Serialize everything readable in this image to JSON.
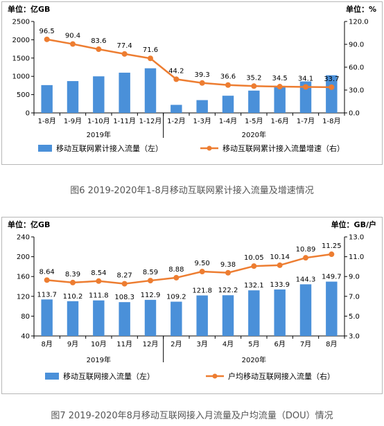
{
  "charts": [
    {
      "unit_left": "单位：亿GB",
      "unit_right": "单位：%",
      "caption": "图6 2019-2020年1-8月移动互联网累计接入流量及增速情况",
      "year_labels": [
        "2019年",
        "2020年"
      ]
    },
    {
      "unit_left": "单位：亿GB",
      "unit_right": "单位：GB/户",
      "caption": "图7 2019-2020年8月移动互联网接入月流量及户均流量（DOU）情况",
      "year_labels": [
        "2019年",
        "2020年"
      ]
    }
  ],
  "chart_data": [
    {
      "type": "bar+line",
      "categories": [
        "1-8月",
        "1-9月",
        "1-10月",
        "1-11月",
        "1-12月",
        "1-2月",
        "1-3月",
        "1-4月",
        "1-5月",
        "1-6月",
        "1-7月",
        "1-8月"
      ],
      "series": [
        {
          "name": "移动互联网累计接入流量（左）",
          "kind": "bar",
          "axis": "left",
          "values": [
            760,
            870,
            1000,
            1100,
            1220,
            220,
            350,
            470,
            610,
            740,
            860,
            1030
          ]
        },
        {
          "name": "移动互联网累计接入流量增速（右）",
          "kind": "line",
          "axis": "right",
          "values": [
            96.5,
            90.4,
            83.6,
            77.4,
            71.6,
            44.2,
            39.3,
            36.6,
            35.2,
            34.5,
            34.1,
            33.7
          ]
        }
      ],
      "y_left": {
        "min": 0,
        "max": 2500,
        "ticks": [
          "0",
          "500",
          "1000",
          "1500",
          "2000",
          "2500"
        ]
      },
      "y_right": {
        "min": 0,
        "max": 120,
        "ticks": [
          "0.0",
          "30.0",
          "60.0",
          "90.0",
          "120.0"
        ]
      },
      "line_labels": [
        "96.5",
        "90.4",
        "83.6",
        "77.4",
        "71.6",
        "44.2",
        "39.3",
        "36.6",
        "35.2",
        "34.5",
        "34.1",
        "33.7"
      ],
      "legend_placement": "bottom",
      "colors": {
        "bar": "#4a90d9",
        "line": "#ed7d31"
      }
    },
    {
      "type": "bar+line",
      "categories": [
        "8月",
        "9月",
        "10月",
        "11月",
        "12月",
        "2月",
        "3月",
        "4月",
        "5月",
        "6月",
        "7月",
        "8月"
      ],
      "series": [
        {
          "name": "移动互联网接入流量（左）",
          "kind": "bar",
          "axis": "left",
          "values": [
            113.7,
            110.2,
            111.8,
            108.3,
            112.9,
            109.2,
            121.8,
            122.2,
            132.1,
            133.9,
            144.3,
            149.7
          ]
        },
        {
          "name": "户均移动互联网接入流量（右）",
          "kind": "line",
          "axis": "right",
          "values": [
            8.64,
            8.39,
            8.54,
            8.27,
            8.59,
            8.88,
            9.5,
            9.38,
            10.05,
            10.14,
            10.89,
            11.25
          ]
        }
      ],
      "y_left": {
        "min": 40,
        "max": 240,
        "ticks": [
          "40",
          "80",
          "120",
          "160",
          "200",
          "240"
        ]
      },
      "y_right": {
        "min": 3.0,
        "max": 13.0,
        "ticks": [
          "3.0",
          "5.0",
          "7.0",
          "9.0",
          "11.0",
          "13.0"
        ]
      },
      "bar_labels": [
        "113.7",
        "110.2",
        "111.8",
        "108.3",
        "112.9",
        "109.2",
        "121.8",
        "122.2",
        "132.1",
        "133.9",
        "144.3",
        "149.7"
      ],
      "line_labels": [
        "8.64",
        "8.39",
        "8.54",
        "8.27",
        "8.59",
        "8.88",
        "9.50",
        "9.38",
        "10.05",
        "10.14",
        "10.89",
        "11.25"
      ],
      "legend_placement": "bottom",
      "colors": {
        "bar": "#4a90d9",
        "line": "#ed7d31"
      }
    }
  ]
}
